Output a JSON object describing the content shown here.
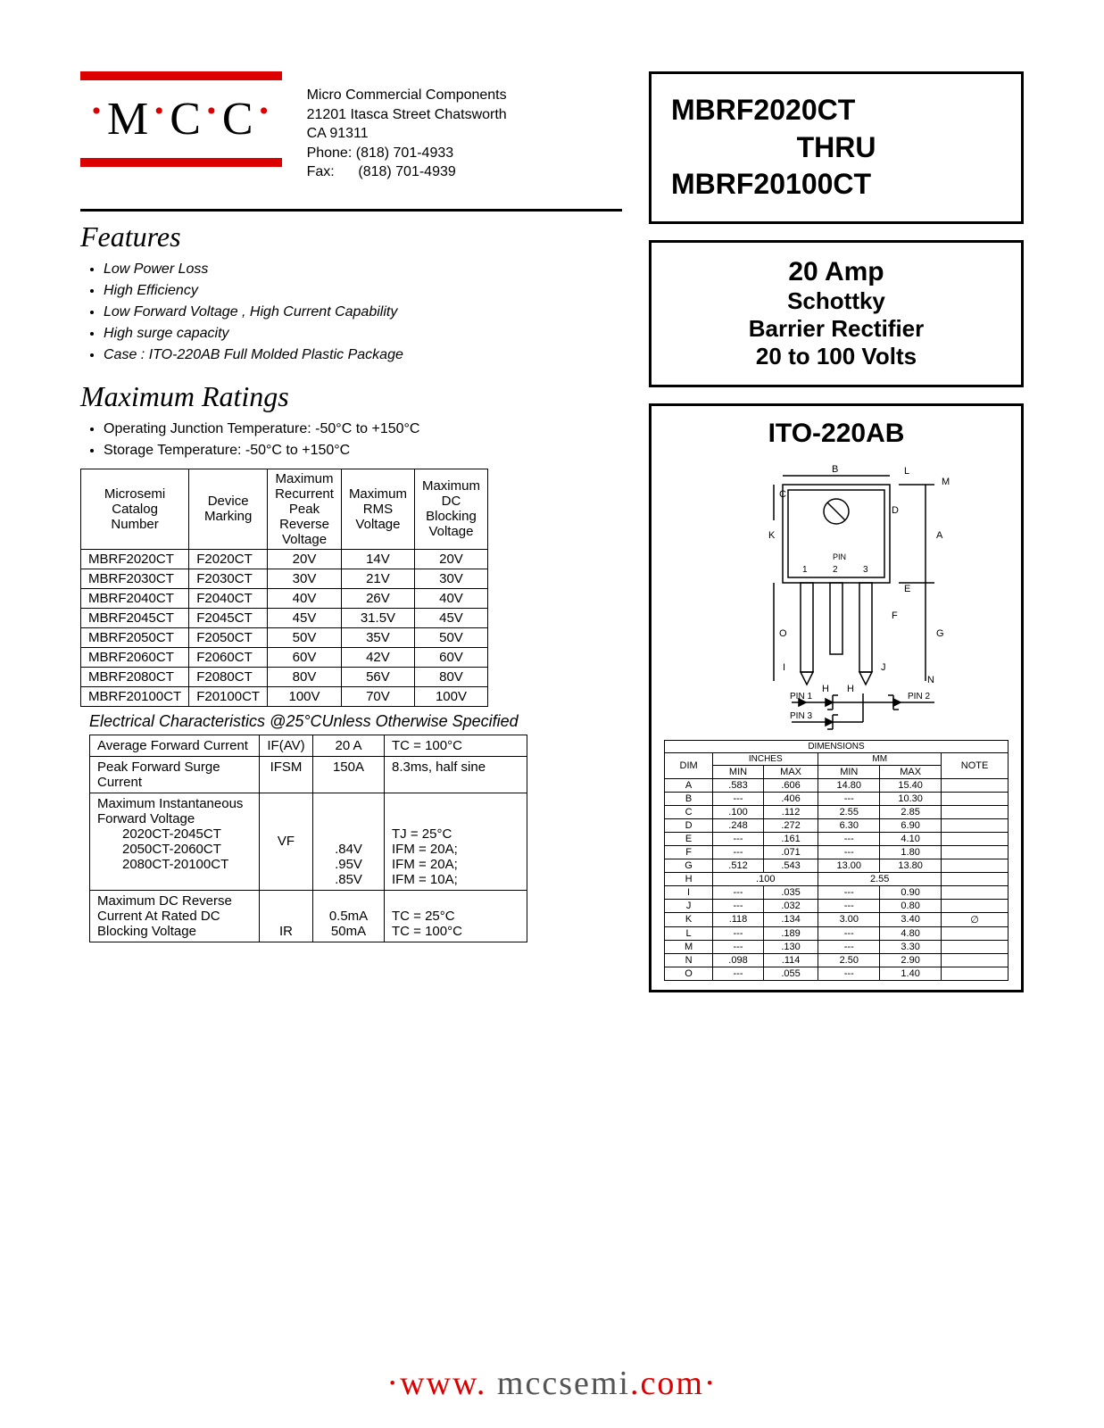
{
  "logo": {
    "text": "MCC"
  },
  "address": {
    "line1": "Micro Commercial Components",
    "line2": "21201 Itasca Street Chatsworth",
    "line3": "CA 91311",
    "phone_lbl": "Phone:",
    "phone": "(818) 701-4933",
    "fax_lbl": "Fax:",
    "fax": "(818) 701-4939"
  },
  "title": {
    "p1": "MBRF2020CT",
    "p2": "THRU",
    "p3": "MBRF20100CT"
  },
  "spec": {
    "amp": "20 Amp",
    "sch": "Schottky",
    "bar": "Barrier Rectifier",
    "volt": "20 to 100 Volts"
  },
  "features": {
    "heading": "Features",
    "items": [
      "Low Power Loss",
      "High Efficiency",
      "Low Forward Voltage , High Current Capability",
      "High surge capacity",
      "Case : ITO-220AB Full Molded Plastic Package"
    ]
  },
  "maxr": {
    "heading": "Maximum Ratings",
    "items": [
      "Operating Junction Temperature: -50°C to +150°C",
      "Storage Temperature: -50°C to +150°C"
    ]
  },
  "ratings": {
    "headers": [
      "Microsemi Catalog Number",
      "Device Marking",
      "Maximum Recurrent Peak Reverse Voltage",
      "Maximum RMS Voltage",
      "Maximum DC Blocking Voltage"
    ],
    "rows": [
      [
        "MBRF2020CT",
        "F2020CT",
        "20V",
        "14V",
        "20V"
      ],
      [
        "MBRF2030CT",
        "F2030CT",
        "30V",
        "21V",
        "30V"
      ],
      [
        "MBRF2040CT",
        "F2040CT",
        "40V",
        "26V",
        "40V"
      ],
      [
        "MBRF2045CT",
        "F2045CT",
        "45V",
        "31.5V",
        "45V"
      ],
      [
        "MBRF2050CT",
        "F2050CT",
        "50V",
        "35V",
        "50V"
      ],
      [
        "MBRF2060CT",
        "F2060CT",
        "60V",
        "42V",
        "60V"
      ],
      [
        "MBRF2080CT",
        "F2080CT",
        "80V",
        "56V",
        "80V"
      ],
      [
        "MBRF20100CT",
        "F20100CT",
        "100V",
        "70V",
        "100V"
      ]
    ]
  },
  "ec_title": "Electrical Characteristics @25°CUnless Otherwise Specified",
  "ec": {
    "r1": {
      "a": "Average Forward Current",
      "b": "IF(AV)",
      "c": "20 A",
      "d": "TC = 100°C"
    },
    "r2": {
      "a": "Peak Forward Surge Current",
      "b": "IFSM",
      "c": "150A",
      "d": "8.3ms, half sine"
    },
    "r3": {
      "a": "Maximum Instantaneous Forward Voltage",
      "a1": "2020CT-2045CT",
      "a2": "2050CT-2060CT",
      "a3": "2080CT-20100CT",
      "b": "VF",
      "c1": ".84V",
      "c2": ".95V",
      "c3": ".85V",
      "d0": "TJ = 25°C",
      "d1": "IFM = 20A;",
      "d2": "IFM = 20A;",
      "d3": "IFM = 10A;"
    },
    "r4": {
      "a": "Maximum DC Reverse Current At Rated DC Blocking Voltage",
      "b": "IR",
      "c1": "0.5mA",
      "c2": "50mA",
      "d1": "TC = 25°C",
      "d2": "TC = 100°C"
    }
  },
  "pkg": {
    "heading": "ITO-220AB",
    "pin1": "PIN 1",
    "pin2": "PIN 2",
    "pin3": "PIN 3",
    "pin_lbl": "PIN",
    "letters": [
      "A",
      "B",
      "C",
      "D",
      "E",
      "F",
      "G",
      "H",
      "I",
      "J",
      "K",
      "L",
      "M",
      "N",
      "O"
    ],
    "pinnums": [
      "1",
      "2",
      "3"
    ]
  },
  "dims": {
    "hdr": "DIMENSIONS",
    "in": "INCHES",
    "mm": "MM",
    "cols": [
      "DIM",
      "MIN",
      "MAX",
      "MIN",
      "MAX",
      "NOTE"
    ],
    "rows": [
      [
        "A",
        ".583",
        ".606",
        "14.80",
        "15.40",
        ""
      ],
      [
        "B",
        "---",
        ".406",
        "---",
        "10.30",
        ""
      ],
      [
        "C",
        ".100",
        ".112",
        "2.55",
        "2.85",
        ""
      ],
      [
        "D",
        ".248",
        ".272",
        "6.30",
        "6.90",
        ""
      ],
      [
        "E",
        "---",
        ".161",
        "---",
        "4.10",
        ""
      ],
      [
        "F",
        "---",
        ".071",
        "---",
        "1.80",
        ""
      ],
      [
        "G",
        ".512",
        ".543",
        "13.00",
        "13.80",
        ""
      ],
      [
        "H",
        ".100",
        "",
        "2.55",
        "",
        ""
      ],
      [
        "I",
        "---",
        ".035",
        "---",
        "0.90",
        ""
      ],
      [
        "J",
        "---",
        ".032",
        "---",
        "0.80",
        ""
      ],
      [
        "K",
        ".118",
        ".134",
        "3.00",
        "3.40",
        "∅"
      ],
      [
        "L",
        "---",
        ".189",
        "---",
        "4.80",
        ""
      ],
      [
        "M",
        "---",
        ".130",
        "---",
        "3.30",
        ""
      ],
      [
        "N",
        ".098",
        ".114",
        "2.50",
        "2.90",
        ""
      ],
      [
        "O",
        "---",
        ".055",
        "---",
        "1.40",
        ""
      ]
    ]
  },
  "footer": {
    "w": "www",
    "d1": ".",
    "m": " mccsemi",
    "d2": ".",
    "c": "com"
  }
}
